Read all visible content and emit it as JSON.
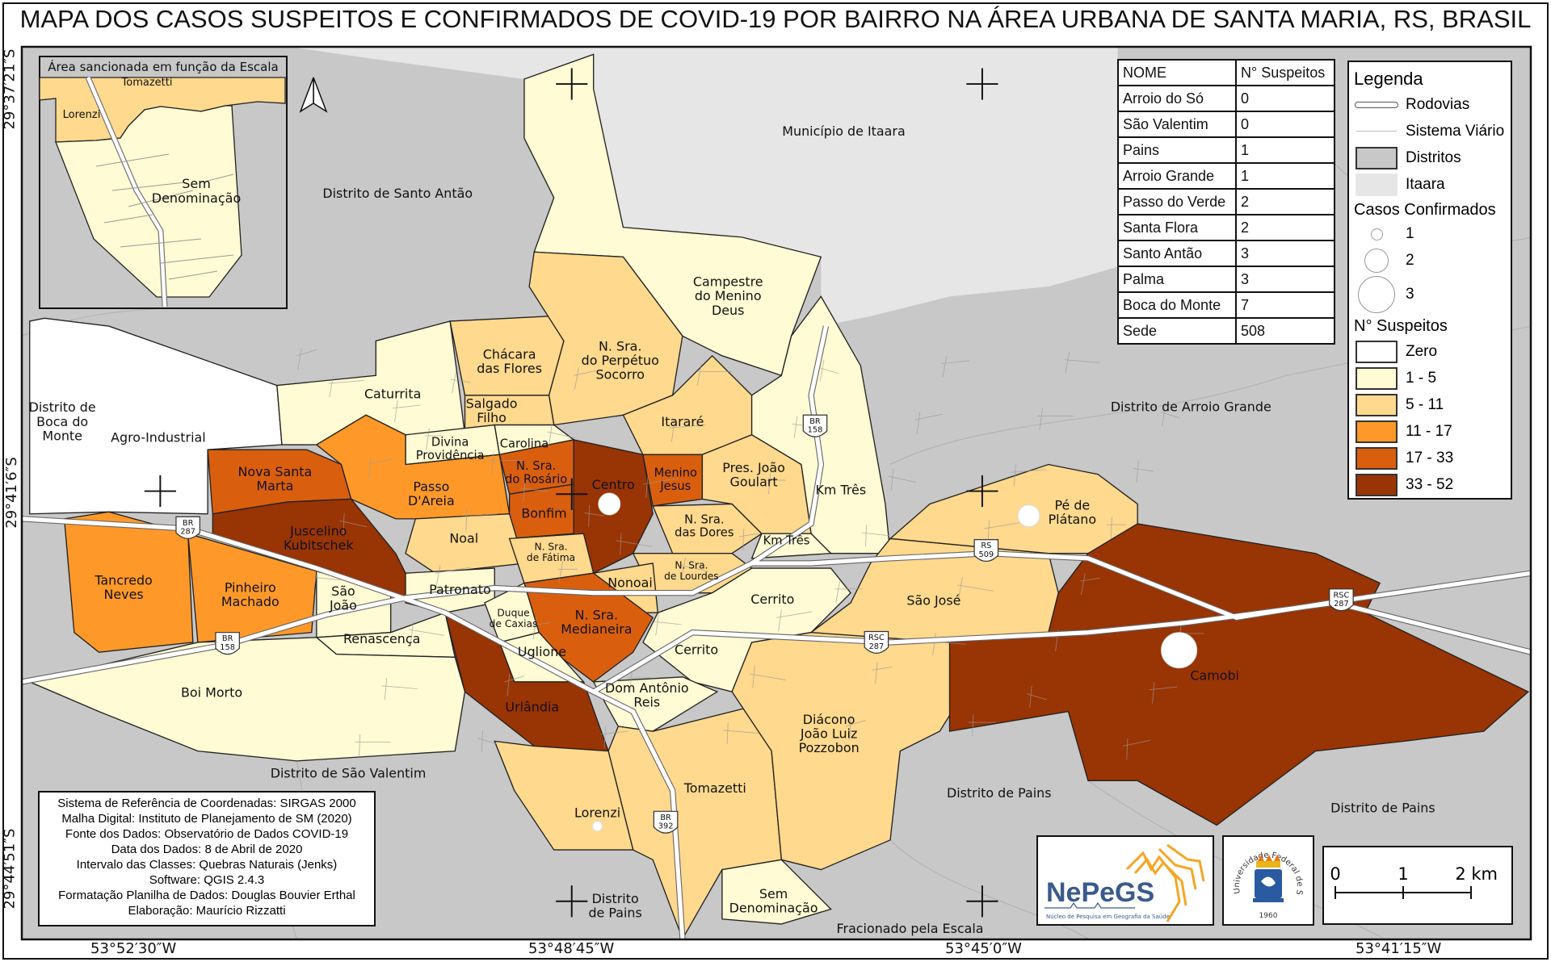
{
  "title": "MAPA DOS CASOS SUSPEITOS E CONFIRMADOS DE COVID-19 POR BAIRRO NA ÁREA URBANA DE SANTA MARIA, RS, BRASIL",
  "coords": {
    "lat": [
      "29°37′21″S",
      "29°41′6″S",
      "29°44′51″S"
    ],
    "lon": [
      "53°52′30″W",
      "53°48′45″W",
      "53°45′0″W",
      "53°41′15″W"
    ]
  },
  "colors": {
    "district": "#c8c8c8",
    "itaara": "#e6e6e6",
    "classes": [
      "#ffffff",
      "#fffbd4",
      "#fed98e",
      "#fe9929",
      "#d95f0e",
      "#993404"
    ]
  },
  "districts": [
    "Município de Itaara",
    "Distrito de Santo Antão",
    "Distrito de\nBoca do\nMonte",
    "Distrito de Arroio Grande",
    "Distrito de São Valentim",
    "Distrito de Pains",
    "Distrito de Pains",
    "Distrito\nde Pains",
    "Fracionado pela Escala"
  ],
  "neighborhoods": [
    {
      "name": "Agro-Industrial",
      "class": 0
    },
    {
      "name": "Campestre\ndo Menino\nDeus",
      "class": 1
    },
    {
      "name": "Caturrita",
      "class": 1
    },
    {
      "name": "Chácara\ndas Flores",
      "class": 2
    },
    {
      "name": "N. Sra.\ndo Perpétuo\nSocorro",
      "class": 2
    },
    {
      "name": "Salgado\nFilho",
      "class": 2
    },
    {
      "name": "Divina\nProvidência",
      "class": 1
    },
    {
      "name": "Carolina",
      "class": 1
    },
    {
      "name": "Itararé",
      "class": 2
    },
    {
      "name": "Km Três",
      "class": 1
    },
    {
      "name": "Nova Santa\nMarta",
      "class": 4
    },
    {
      "name": "Passo\nD'Areia",
      "class": 3
    },
    {
      "name": "N. Sra.\ndo Rosário",
      "class": 4
    },
    {
      "name": "Bonfim",
      "class": 4
    },
    {
      "name": "Centro",
      "class": 5
    },
    {
      "name": "Menino\nJesus",
      "class": 4
    },
    {
      "name": "Pres. João\nGoulart",
      "class": 2
    },
    {
      "name": "Juscelino\nKubitschek",
      "class": 5
    },
    {
      "name": "Tancredo\nNeves",
      "class": 3
    },
    {
      "name": "Pinheiro\nMachado",
      "class": 3
    },
    {
      "name": "São\nJoão",
      "class": 1
    },
    {
      "name": "Renascença",
      "class": 1
    },
    {
      "name": "Boi Morto",
      "class": 1
    },
    {
      "name": "Noal",
      "class": 2
    },
    {
      "name": "N. Sra.\nde Fátima",
      "class": 2
    },
    {
      "name": "N. Sra.\ndas Dores",
      "class": 2
    },
    {
      "name": "Km Três",
      "class": 1
    },
    {
      "name": "N. Sra.\nde Lourdes",
      "class": 2
    },
    {
      "name": "Nonoai",
      "class": 2
    },
    {
      "name": "Patronato",
      "class": 1
    },
    {
      "name": "Duque\nde Caxias",
      "class": 1
    },
    {
      "name": "N. Sra.\nMedianeira",
      "class": 4
    },
    {
      "name": "Uglione",
      "class": 1
    },
    {
      "name": "Urlândia",
      "class": 5
    },
    {
      "name": "Cerrito",
      "class": 1
    },
    {
      "name": "Cerrito",
      "class": 1
    },
    {
      "name": "Dom Antônio\nReis",
      "class": 1
    },
    {
      "name": "Tomazetti",
      "class": 2
    },
    {
      "name": "Lorenzi",
      "class": 2
    },
    {
      "name": "Sem\nDenominação",
      "class": 1
    },
    {
      "name": "Diácono\nJoão Luiz\nPozzobon",
      "class": 2
    },
    {
      "name": "São José",
      "class": 2
    },
    {
      "name": "Pé de\nPlátano",
      "class": 2
    },
    {
      "name": "Camobi",
      "class": 5
    }
  ],
  "confirmed_points": [
    {
      "bairro": "Centro",
      "cases": 2
    },
    {
      "bairro": "Pé de Plátano",
      "cases": 2
    },
    {
      "bairro": "Camobi",
      "cases": 3
    },
    {
      "bairro": "Lorenzi",
      "cases": 1
    }
  ],
  "road_shields": [
    "BR\n287",
    "BR\n158",
    "BR\n158",
    "RS\n509",
    "RSC\n287",
    "RSC\n287",
    "BR\n392"
  ],
  "inset": {
    "title": "Área sancionada em função da Escala",
    "labels": [
      "Tomazetti",
      "Lorenzi",
      "Sem\nDenominação"
    ]
  },
  "table": {
    "headers": [
      "NOME",
      "N° Suspeitos"
    ],
    "rows": [
      [
        "Arroio do Só",
        "0"
      ],
      [
        "São Valentim",
        "0"
      ],
      [
        "Pains",
        "1"
      ],
      [
        "Arroio Grande",
        "1"
      ],
      [
        "Passo do Verde",
        "2"
      ],
      [
        "Santa Flora",
        "2"
      ],
      [
        "Santo Antão",
        "3"
      ],
      [
        "Palma",
        "3"
      ],
      [
        "Boca do Monte",
        "7"
      ],
      [
        "Sede",
        "508"
      ]
    ]
  },
  "legend": {
    "title": "Legenda",
    "rodovias": "Rodovias",
    "sistema_viario": "Sistema Viário",
    "distritos": "Distritos",
    "itaara": "Itaara",
    "confirmed_title": "Casos Confirmados",
    "confirmed": [
      "1",
      "2",
      "3"
    ],
    "suspects_title": "N° Suspeitos",
    "classes": [
      "Zero",
      "1 - 5",
      "5 - 11",
      "11 - 17",
      "17 - 33",
      "33 - 52"
    ]
  },
  "info": [
    "Sistema de Referência de Coordenadas: SIRGAS 2000",
    "Malha Digital: Instituto de Planejamento de SM (2020)",
    "Fonte dos Dados: Observatório de Dados COVID-19",
    "Data dos Dados: 8 de Abril de 2020",
    "Intervalo das Classes: Quebras Naturais (Jenks)",
    "Software: QGIS 2.4.3",
    "Formatação Planilha de Dados: Douglas Bouvier Erthal",
    "Elaboração: Maurício Rizzatti"
  ],
  "logos": {
    "nepegs": "NePeGS",
    "nepegs_sub": "Núcleo de Pesquisa em Geografia da Saúde",
    "ufsm": "Universidade Federal de Santa Maria",
    "ufsm_year": "1960"
  },
  "scalebar": {
    "labels": [
      "0",
      "1",
      "2 km"
    ]
  }
}
